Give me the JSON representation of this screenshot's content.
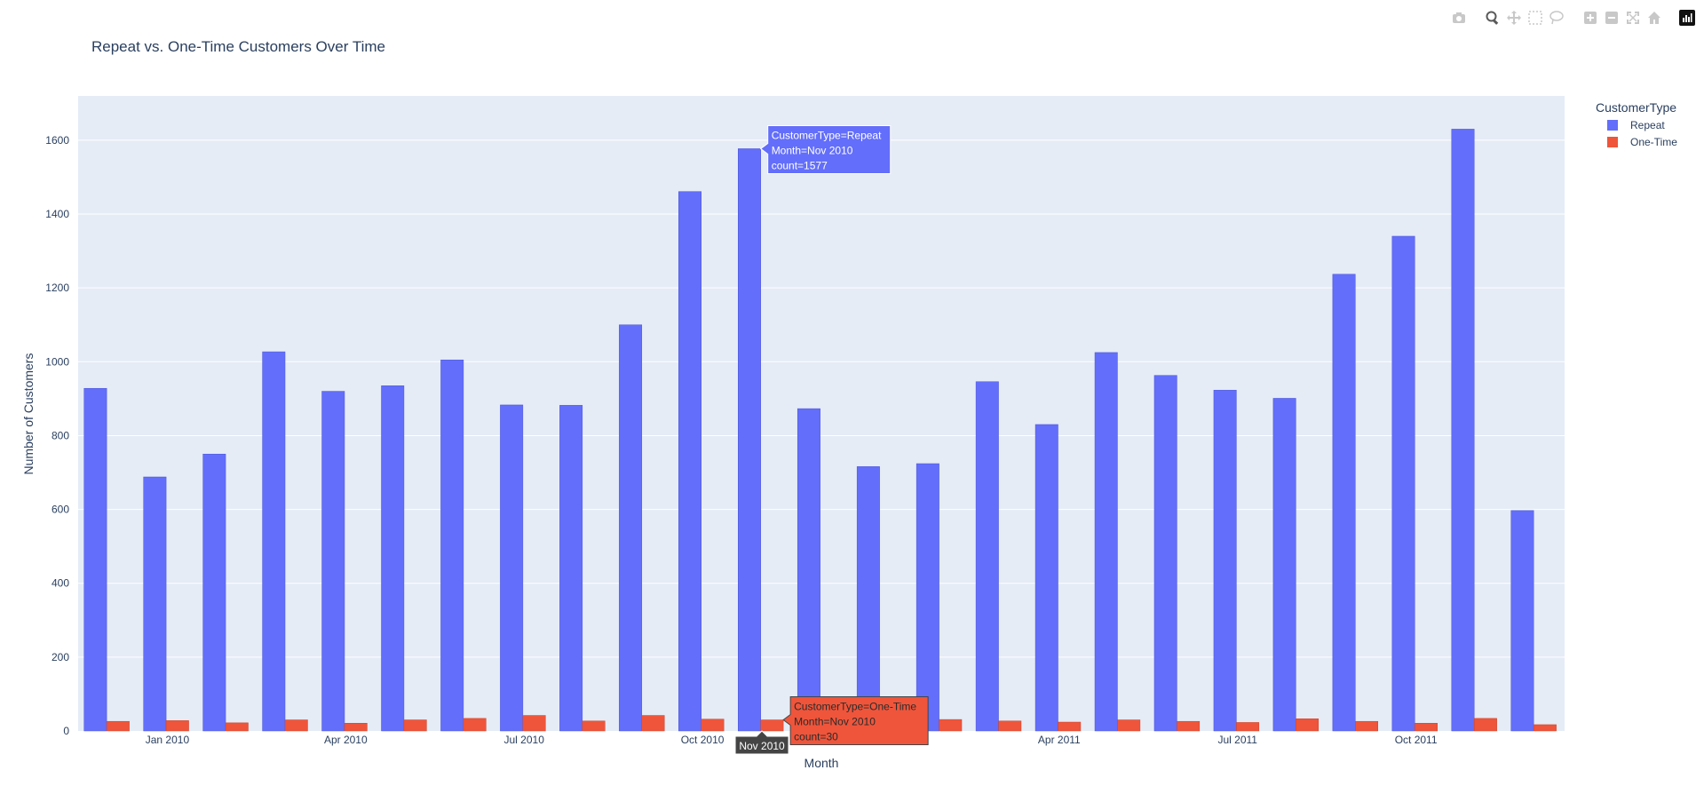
{
  "chart_data": {
    "type": "bar",
    "title": "Repeat vs. One-Time Customers Over Time",
    "xlabel": "Month",
    "ylabel": "Number of Customers",
    "ylim": [
      0,
      1720
    ],
    "yticks": [
      0,
      200,
      400,
      600,
      800,
      1000,
      1200,
      1400,
      1600
    ],
    "grid": true,
    "legend": {
      "title": "CustomerType",
      "placement": "top-right"
    },
    "categories": [
      "Dec 2009",
      "Jan 2010",
      "Feb 2010",
      "Mar 2010",
      "Apr 2010",
      "May 2010",
      "Jun 2010",
      "Jul 2010",
      "Aug 2010",
      "Sep 2010",
      "Oct 2010",
      "Nov 2010",
      "Dec 2010",
      "Jan 2011",
      "Feb 2011",
      "Mar 2011",
      "Apr 2011",
      "May 2011",
      "Jun 2011",
      "Jul 2011",
      "Aug 2011",
      "Sep 2011",
      "Oct 2011",
      "Nov 2011",
      "Dec 2011"
    ],
    "x_tick_labels": [
      {
        "index": 1,
        "label": "Jan 2010"
      },
      {
        "index": 4,
        "label": "Apr 2010"
      },
      {
        "index": 7,
        "label": "Jul 2010"
      },
      {
        "index": 10,
        "label": "Oct 2010"
      },
      {
        "index": 16,
        "label": "Apr 2011"
      },
      {
        "index": 19,
        "label": "Jul 2011"
      },
      {
        "index": 22,
        "label": "Oct 2011"
      }
    ],
    "series": [
      {
        "name": "Repeat",
        "color": "#636efa",
        "values": [
          928,
          688,
          750,
          1027,
          920,
          935,
          1005,
          883,
          882,
          1100,
          1461,
          1577,
          873,
          716,
          724,
          946,
          830,
          1025,
          963,
          923,
          901,
          1237,
          1340,
          1630,
          597
        ]
      },
      {
        "name": "One-Time",
        "color": "#ef553b",
        "values": [
          26,
          28,
          22,
          30,
          21,
          30,
          34,
          42,
          27,
          42,
          32,
          30,
          25,
          28,
          31,
          27,
          24,
          30,
          26,
          23,
          33,
          26,
          21,
          34,
          17
        ]
      }
    ],
    "hover": {
      "index": 11,
      "axis_label": "Nov 2010",
      "repeat_lines": [
        "CustomerType=Repeat",
        "Month=Nov 2010",
        "count=1577"
      ],
      "onetime_lines": [
        "CustomerType=One-Time",
        "Month=Nov 2010",
        "count=30"
      ]
    }
  },
  "modebar": {
    "icons": [
      "camera-icon",
      "zoom-icon",
      "pan-icon",
      "box-select-icon",
      "lasso-select-icon",
      "zoom-in-icon",
      "zoom-out-icon",
      "autoscale-icon",
      "reset-axes-icon",
      "plotly-logo-icon"
    ]
  }
}
